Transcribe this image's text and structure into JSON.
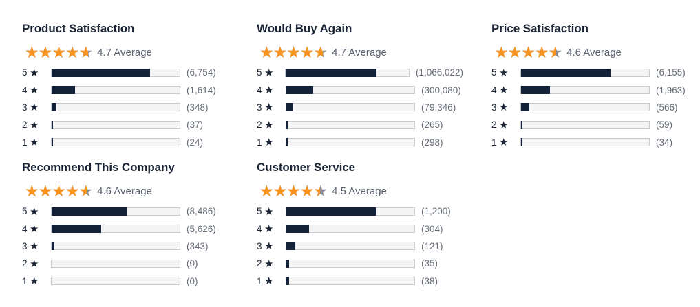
{
  "cards": [
    {
      "title": "Product Satisfaction",
      "rating": 4.7,
      "average_label": "4.7 Average",
      "rows": [
        {
          "stars": "5",
          "count": 6754,
          "count_label": "(6,754)"
        },
        {
          "stars": "4",
          "count": 1614,
          "count_label": "(1,614)"
        },
        {
          "stars": "3",
          "count": 348,
          "count_label": "(348)"
        },
        {
          "stars": "2",
          "count": 37,
          "count_label": "(37)"
        },
        {
          "stars": "1",
          "count": 24,
          "count_label": "(24)"
        }
      ]
    },
    {
      "title": "Would Buy Again",
      "rating": 4.7,
      "average_label": "4.7 Average",
      "rows": [
        {
          "stars": "5",
          "count": 1066022,
          "count_label": "(1,066,022)"
        },
        {
          "stars": "4",
          "count": 300080,
          "count_label": "(300,080)"
        },
        {
          "stars": "3",
          "count": 79346,
          "count_label": "(79,346)"
        },
        {
          "stars": "2",
          "count": 265,
          "count_label": "(265)"
        },
        {
          "stars": "1",
          "count": 298,
          "count_label": "(298)"
        }
      ]
    },
    {
      "title": "Price Satisfaction",
      "rating": 4.6,
      "average_label": "4.6 Average",
      "rows": [
        {
          "stars": "5",
          "count": 6155,
          "count_label": "(6,155)"
        },
        {
          "stars": "4",
          "count": 1963,
          "count_label": "(1,963)"
        },
        {
          "stars": "3",
          "count": 566,
          "count_label": "(566)"
        },
        {
          "stars": "2",
          "count": 59,
          "count_label": "(59)"
        },
        {
          "stars": "1",
          "count": 34,
          "count_label": "(34)"
        }
      ]
    },
    {
      "title": "Recommend This Company",
      "rating": 4.6,
      "average_label": "4.6 Average",
      "rows": [
        {
          "stars": "5",
          "count": 8486,
          "count_label": "(8,486)"
        },
        {
          "stars": "4",
          "count": 5626,
          "count_label": "(5,626)"
        },
        {
          "stars": "3",
          "count": 343,
          "count_label": "(343)"
        },
        {
          "stars": "2",
          "count": 0,
          "count_label": "(0)"
        },
        {
          "stars": "1",
          "count": 0,
          "count_label": "(0)"
        }
      ]
    },
    {
      "title": "Customer Service",
      "rating": 4.5,
      "average_label": "4.5 Average",
      "rows": [
        {
          "stars": "5",
          "count": 1200,
          "count_label": "(1,200)"
        },
        {
          "stars": "4",
          "count": 304,
          "count_label": "(304)"
        },
        {
          "stars": "3",
          "count": 121,
          "count_label": "(121)"
        },
        {
          "stars": "2",
          "count": 35,
          "count_label": "(35)"
        },
        {
          "stars": "1",
          "count": 38,
          "count_label": "(38)"
        }
      ]
    }
  ],
  "colors": {
    "star_fill": "#f7931e",
    "star_empty": "#8a8f99",
    "bar_fill": "#132238",
    "bar_track": "#f4f4f5",
    "bar_border": "#c9cbd0"
  },
  "icons": {
    "star": "star-icon"
  }
}
